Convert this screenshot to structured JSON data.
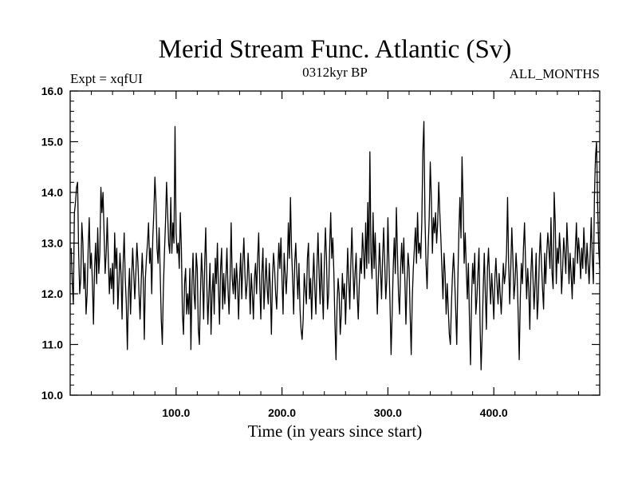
{
  "chart_data": {
    "type": "line",
    "title": "Merid Stream Func. Atlantic (Sv)",
    "subtitle_left": "Expt = xqfUI",
    "subtitle_center": "0312kyr BP",
    "subtitle_right": "ALL_MONTHS",
    "xlabel": "Time (in years since start)",
    "ylabel": "",
    "xlim": [
      0,
      500
    ],
    "ylim": [
      10.0,
      16.0
    ],
    "x_ticks": [
      100,
      200,
      300,
      400
    ],
    "x_tick_labels": [
      "100.0",
      "200.0",
      "300.0",
      "400.0"
    ],
    "y_ticks": [
      10,
      11,
      12,
      13,
      14,
      15,
      16
    ],
    "y_tick_labels": [
      "10.0",
      "11.0",
      "12.0",
      "13.0",
      "14.0",
      "15.0",
      "16.0"
    ],
    "grid": false,
    "series": [
      {
        "name": "Merid Stream Func. Atlantic",
        "x_start": 1,
        "x_step": 1,
        "values": [
          12.9,
          12.2,
          11.8,
          13.6,
          13.8,
          14.1,
          14.2,
          12.8,
          12.0,
          12.3,
          13.4,
          13.0,
          12.1,
          12.6,
          11.6,
          12.0,
          12.9,
          13.5,
          12.5,
          12.8,
          12.2,
          11.4,
          12.5,
          13.0,
          12.2,
          13.3,
          12.4,
          12.8,
          14.1,
          13.6,
          14.0,
          13.2,
          12.4,
          12.8,
          13.5,
          12.7,
          12.0,
          12.5,
          12.1,
          12.6,
          11.8,
          13.2,
          12.5,
          12.9,
          11.7,
          12.2,
          12.8,
          12.4,
          11.5,
          12.6,
          13.2,
          12.3,
          11.8,
          10.9,
          12.0,
          12.5,
          11.6,
          12.3,
          12.9,
          12.4,
          11.9,
          12.4,
          13.0,
          12.6,
          12.0,
          11.5,
          12.2,
          12.8,
          12.3,
          11.1,
          12.3,
          12.7,
          13.0,
          13.4,
          12.6,
          12.9,
          12.0,
          13.1,
          13.6,
          14.3,
          13.8,
          12.9,
          12.6,
          13.3,
          12.4,
          11.5,
          11.0,
          12.1,
          12.8,
          13.4,
          14.2,
          13.6,
          13.0,
          12.8,
          13.9,
          12.8,
          13.4,
          13.0,
          15.3,
          13.2,
          12.8,
          13.0,
          12.5,
          13.6,
          12.9,
          11.6,
          11.2,
          12.2,
          12.5,
          11.6,
          12.0,
          11.6,
          12.5,
          10.9,
          12.2,
          12.8,
          12.0,
          11.7,
          12.8,
          12.5,
          11.3,
          11.0,
          12.0,
          12.8,
          12.3,
          11.5,
          12.6,
          13.3,
          12.2,
          11.4,
          12.0,
          12.6,
          11.2,
          12.0,
          12.4,
          11.6,
          12.7,
          12.2,
          13.0,
          12.1,
          11.4,
          12.5,
          12.9,
          11.7,
          12.4,
          11.8,
          12.3,
          12.9,
          12.1,
          11.6,
          12.3,
          13.4,
          12.3,
          12.0,
          12.5,
          11.9,
          12.6,
          12.2,
          11.5,
          12.3,
          12.8,
          11.9,
          12.6,
          13.1,
          12.4,
          11.9,
          12.2,
          12.8,
          12.3,
          11.6,
          12.4,
          12.0,
          11.5,
          12.3,
          12.6,
          12.0,
          12.7,
          13.2,
          12.2,
          11.5,
          12.4,
          12.9,
          11.7,
          12.2,
          12.7,
          12.1,
          11.8,
          12.6,
          12.1,
          11.2,
          12.3,
          12.8,
          12.5,
          12.0,
          11.7,
          12.4,
          13.0,
          12.5,
          13.1,
          12.3,
          11.6,
          12.8,
          12.4,
          12.0,
          12.5,
          13.4,
          12.7,
          13.9,
          12.9,
          12.3,
          11.6,
          12.6,
          13.0,
          12.4,
          11.9,
          12.6,
          11.7,
          11.3,
          11.1,
          11.5,
          12.4,
          12.1,
          11.8,
          12.7,
          13.0,
          11.9,
          12.3,
          11.5,
          12.2,
          12.8,
          12.1,
          11.6,
          12.5,
          13.2,
          12.4,
          11.8,
          12.8,
          12.1,
          11.5,
          12.6,
          13.3,
          12.7,
          11.7,
          12.0,
          12.9,
          13.6,
          12.7,
          13.1,
          12.4,
          11.4,
          10.7,
          11.8,
          12.3,
          12.0,
          11.2,
          11.6,
          12.4,
          11.9,
          12.2,
          11.4,
          12.1,
          12.9,
          12.3,
          11.7,
          12.6,
          13.3,
          12.5,
          11.9,
          12.4,
          12.8,
          12.0,
          11.5,
          12.2,
          12.7,
          12.4,
          13.2,
          12.8,
          12.3,
          13.4,
          12.5,
          13.8,
          12.6,
          14.8,
          12.8,
          12.3,
          13.6,
          12.5,
          13.2,
          12.4,
          11.6,
          12.3,
          13.0,
          12.5,
          11.9,
          12.7,
          13.3,
          12.6,
          11.9,
          12.3,
          13.5,
          12.6,
          11.8,
          10.8,
          11.6,
          12.5,
          13.1,
          12.4,
          13.7,
          12.8,
          12.0,
          11.6,
          12.5,
          13.0,
          12.4,
          13.1,
          12.3,
          11.4,
          12.2,
          12.8,
          12.5,
          11.6,
          10.8,
          11.9,
          12.5,
          12.9,
          13.3,
          12.6,
          13.6,
          12.8,
          13.0,
          12.7,
          13.4,
          14.8,
          15.4,
          13.5,
          12.6,
          12.1,
          12.9,
          13.5,
          14.6,
          13.9,
          12.8,
          13.5,
          13.2,
          13.6,
          13.0,
          13.4,
          14.2,
          13.6,
          13.1,
          12.5,
          11.9,
          12.8,
          12.4,
          11.6,
          12.2,
          11.7,
          11.2,
          11.0,
          11.8,
          12.4,
          12.8,
          12.3,
          11.7,
          11.0,
          12.2,
          13.2,
          13.9,
          13.1,
          14.7,
          13.8,
          12.6,
          13.2,
          12.5,
          11.9,
          12.6,
          11.5,
          10.6,
          11.9,
          12.6,
          12.2,
          12.8,
          11.6,
          11.9,
          12.4,
          12.9,
          11.4,
          10.5,
          11.2,
          12.1,
          12.8,
          12.0,
          11.3,
          12.5,
          12.9,
          12.3,
          11.8,
          12.4,
          12.0,
          11.5,
          12.3,
          12.7,
          12.2,
          11.8,
          12.4,
          12.0,
          11.6,
          12.1,
          12.6,
          12.2,
          12.4,
          12.8,
          13.9,
          12.6,
          11.8,
          12.5,
          13.3,
          12.7,
          11.9,
          12.2,
          12.8,
          12.4,
          11.6,
          10.7,
          11.9,
          12.6,
          12.2,
          12.9,
          13.4,
          12.6,
          11.9,
          12.5,
          12.1,
          11.3,
          12.4,
          12.9,
          12.3,
          11.7,
          12.2,
          12.8,
          11.5,
          11.9,
          12.7,
          13.2,
          12.6,
          12.1,
          11.7,
          12.8,
          12.2,
          12.8,
          13.2,
          12.9,
          12.5,
          13.5,
          12.4,
          12.1,
          14.0,
          13.4,
          12.2,
          12.9,
          12.6,
          13.2,
          12.8,
          12.0,
          12.5,
          13.1,
          12.8,
          12.4,
          13.4,
          12.9,
          12.2,
          12.8,
          12.4,
          11.9,
          12.7,
          12.2,
          12.9,
          13.4,
          12.6,
          13.1,
          12.8,
          12.3,
          12.9,
          12.5,
          13.3,
          12.8,
          12.4,
          13.0,
          12.6,
          12.2,
          12.8,
          13.5,
          12.7,
          12.2,
          13.9,
          14.7,
          15.0,
          13.8,
          12.9,
          12.5
        ]
      }
    ]
  }
}
